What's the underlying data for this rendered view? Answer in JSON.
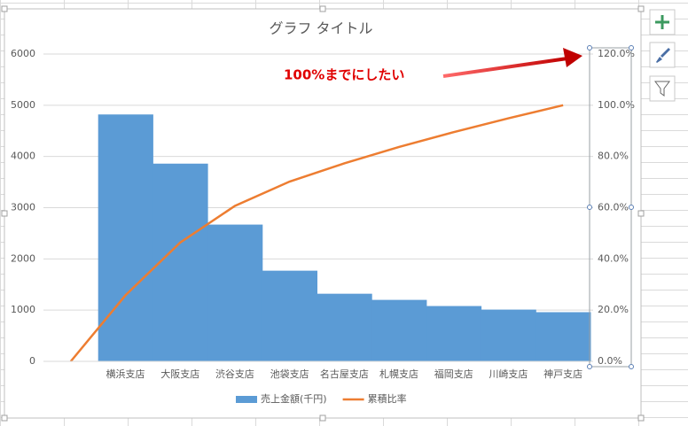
{
  "chart_data": {
    "type": "bar-line",
    "title": "グラフ タイトル",
    "annotation": "100%までにしたい",
    "categories": [
      null,
      "横浜支店",
      "大阪支店",
      "渋谷支店",
      "池袋支店",
      "名古屋支店",
      "札幌支店",
      "福岡支店",
      "川崎支店",
      "神戸支店"
    ],
    "series": [
      {
        "name": "売上金額(千円)",
        "type": "bar",
        "color": "#5b9bd5",
        "values": [
          null,
          4820,
          3860,
          2670,
          1770,
          1320,
          1200,
          1080,
          1010,
          960
        ]
      },
      {
        "name": "累積比率",
        "type": "line",
        "axis": "y2",
        "color": "#ed7d31",
        "values": [
          0,
          25.8,
          46.4,
          60.7,
          70.2,
          77.3,
          83.7,
          89.5,
          94.9,
          100
        ]
      }
    ],
    "ylim": [
      0,
      6000
    ],
    "yticks": [
      0,
      1000,
      2000,
      3000,
      4000,
      5000,
      6000
    ],
    "y2lim": [
      0,
      120
    ],
    "y2ticks": [
      {
        "value": 0,
        "label": "0.0%"
      },
      {
        "value": 20,
        "label": "20.0%"
      },
      {
        "value": 40,
        "label": "40.0%"
      },
      {
        "value": 60,
        "label": "60.0%"
      },
      {
        "value": 80,
        "label": "80.0%"
      },
      {
        "value": 100,
        "label": "100.0%"
      },
      {
        "value": 120,
        "label": "120.0%"
      }
    ],
    "grid": true,
    "legend": "bottom"
  }
}
